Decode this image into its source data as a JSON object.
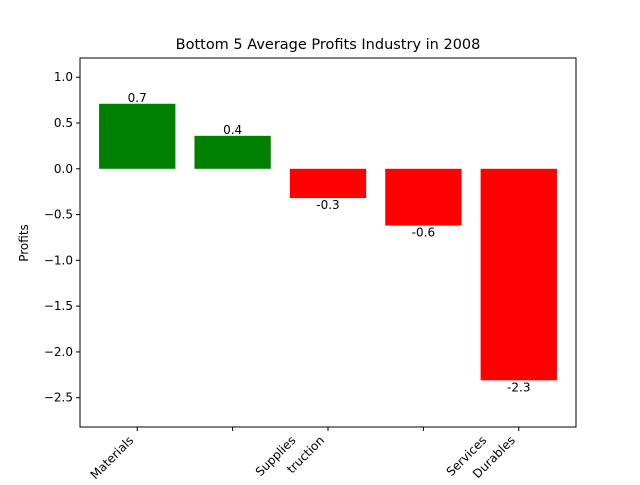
{
  "chart_data": {
    "type": "bar",
    "title": "Bottom 5 Average Profits Industry in 2008",
    "xlabel": "",
    "ylabel": "Profits",
    "categories": [
      "Materials",
      "",
      "Supplies",
      "truction",
      "",
      "Services",
      "Durables"
    ],
    "category_positions": [
      0,
      1,
      1.7,
      2,
      3,
      3.7,
      4
    ],
    "bars": [
      {
        "value": 0.71,
        "label": "0.7",
        "color": "#008000"
      },
      {
        "value": 0.36,
        "label": "0.4",
        "color": "#008000"
      },
      {
        "value": -0.32,
        "label": "-0.3",
        "color": "#ff0000"
      },
      {
        "value": -0.62,
        "label": "-0.6",
        "color": "#ff0000"
      },
      {
        "value": -2.31,
        "label": "-2.3",
        "color": "#ff0000"
      }
    ],
    "yticks": [
      1.0,
      0.5,
      0.0,
      -0.5,
      -1.0,
      -1.5,
      -2.0,
      -2.5
    ],
    "ytick_labels": [
      "1.0",
      "0.5",
      "0.0",
      "−0.5",
      "−1.0",
      "−1.5",
      "−2.0",
      "−2.5"
    ],
    "ylim": [
      -2.82,
      1.21
    ],
    "xlim": [
      -0.6,
      4.6
    ],
    "grid": false,
    "legend": "none",
    "colors": {
      "positive": "#008000",
      "negative": "#ff0000"
    }
  }
}
